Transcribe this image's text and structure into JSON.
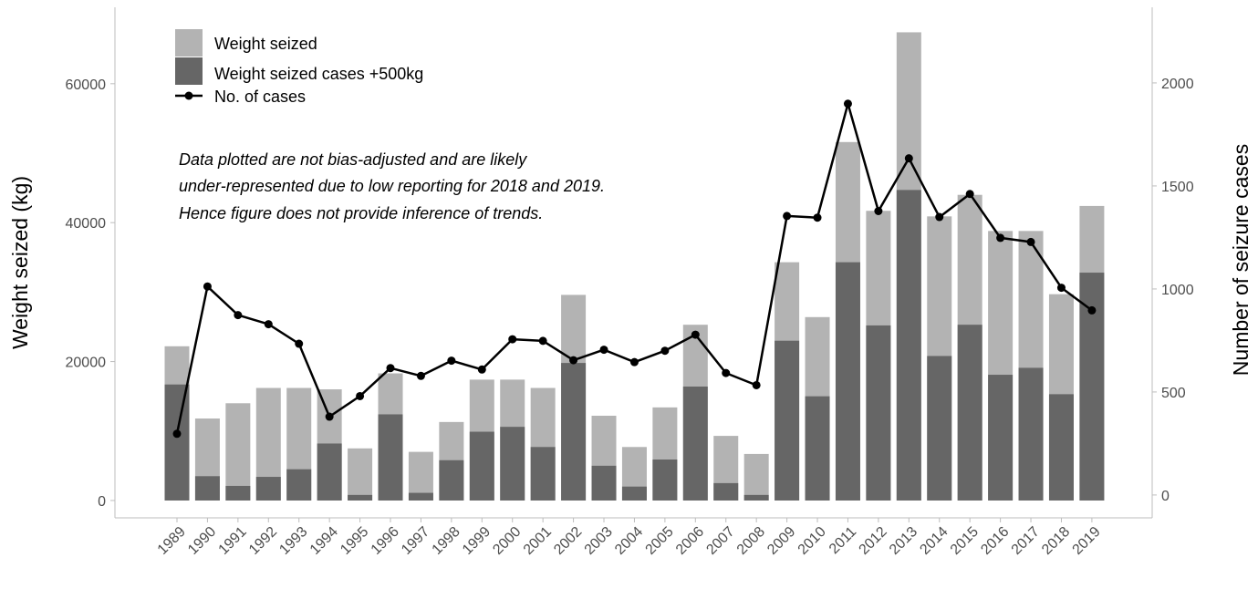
{
  "chart_data": {
    "type": "bar",
    "categories": [
      "1989",
      "1990",
      "1991",
      "1992",
      "1993",
      "1994",
      "1995",
      "1996",
      "1997",
      "1998",
      "1999",
      "2000",
      "2001",
      "2002",
      "2003",
      "2004",
      "2005",
      "2006",
      "2007",
      "2008",
      "2009",
      "2010",
      "2011",
      "2012",
      "2013",
      "2014",
      "2015",
      "2016",
      "2017",
      "2018",
      "2019"
    ],
    "series": [
      {
        "name": "Weight seized",
        "type": "bar",
        "axis": "left",
        "color": "#b3b3b3",
        "values": [
          22200,
          11800,
          14000,
          16200,
          16200,
          16000,
          7500,
          18300,
          7000,
          11300,
          17400,
          17400,
          16200,
          29600,
          12200,
          7700,
          13400,
          25300,
          9300,
          6700,
          34300,
          26400,
          51600,
          41700,
          67400,
          40900,
          44000,
          38800,
          38800,
          29700,
          42400
        ]
      },
      {
        "name": "Weight seized cases +500kg",
        "type": "bar",
        "axis": "left",
        "color": "#666666",
        "values": [
          16700,
          3500,
          2100,
          3400,
          4500,
          8200,
          800,
          12400,
          1100,
          5800,
          9900,
          10600,
          7700,
          19800,
          5000,
          2000,
          5900,
          16400,
          2500,
          800,
          23000,
          15000,
          34300,
          25200,
          44700,
          20800,
          25300,
          18100,
          19100,
          15300,
          32800
        ]
      },
      {
        "name": "No. of cases",
        "type": "line",
        "axis": "right",
        "color": "#000000",
        "values": [
          297,
          1012,
          873,
          829,
          734,
          380,
          480,
          616,
          578,
          652,
          609,
          756,
          748,
          654,
          705,
          645,
          700,
          778,
          592,
          533,
          1354,
          1346,
          1899,
          1378,
          1634,
          1349,
          1461,
          1248,
          1228,
          1006,
          896
        ]
      }
    ],
    "left_axis": {
      "title": "Weight seized (kg)",
      "range": [
        -2500,
        71000
      ],
      "ticks": [
        0,
        20000,
        40000,
        60000
      ],
      "tick_labels": [
        "0",
        "20000",
        "40000",
        "60000"
      ]
    },
    "right_axis": {
      "title": "Number of seizure cases",
      "range": [
        -111,
        2367
      ],
      "ticks": [
        0,
        500,
        1000,
        1500,
        2000
      ],
      "tick_labels": [
        "0",
        "500",
        "1000",
        "1500",
        "2000"
      ]
    },
    "xlabel": "",
    "grid": false,
    "legend_position": "top-left",
    "annotation": [
      "Data plotted are not bias-adjusted and are likely",
      "under-represented due to low reporting for 2018 and 2019.",
      "Hence figure does not provide inference of trends."
    ]
  }
}
